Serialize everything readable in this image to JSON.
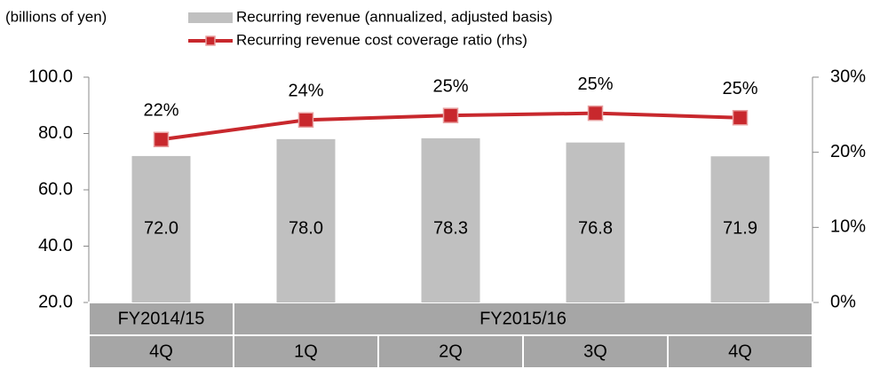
{
  "chart_data": {
    "type": "bar_line",
    "y_axis_unit": "(billions of yen)",
    "groups": [
      {
        "label": "FY2014/15",
        "categories": [
          "4Q"
        ]
      },
      {
        "label": "FY2015/16",
        "categories": [
          "1Q",
          "2Q",
          "3Q",
          "4Q"
        ]
      }
    ],
    "series": [
      {
        "name": "Recurring revenue (annualized, adjusted basis)",
        "type": "bar",
        "color": "#c0c0c0",
        "values": [
          72,
          78,
          78.3,
          76.8,
          71.9
        ],
        "value_labels": [
          "72.0",
          "78.0",
          "78.3",
          "76.8",
          "71.9"
        ]
      },
      {
        "name": "Recurring revenue cost coverage ratio (rhs)",
        "type": "line",
        "axis": "y2",
        "color": "#c8282d",
        "values": [
          21.7,
          24.3,
          24.9,
          25.2,
          24.6
        ],
        "value_labels": [
          "22%",
          "24%",
          "25%",
          "25%",
          "25%"
        ]
      }
    ],
    "ylim": [
      20,
      100
    ],
    "yticks": [
      {
        "value": 20,
        "label": "20.0"
      },
      {
        "value": 40,
        "label": "40.0"
      },
      {
        "value": 60,
        "label": "60.0"
      },
      {
        "value": 80,
        "label": "80.0"
      },
      {
        "value": 100,
        "label": "100.0"
      }
    ],
    "y2lim": [
      0,
      30
    ],
    "y2ticks": [
      {
        "value": 0,
        "label": "0%"
      },
      {
        "value": 10,
        "label": "10%"
      },
      {
        "value": 20,
        "label": "20%"
      },
      {
        "value": 30,
        "label": "30%"
      }
    ]
  }
}
